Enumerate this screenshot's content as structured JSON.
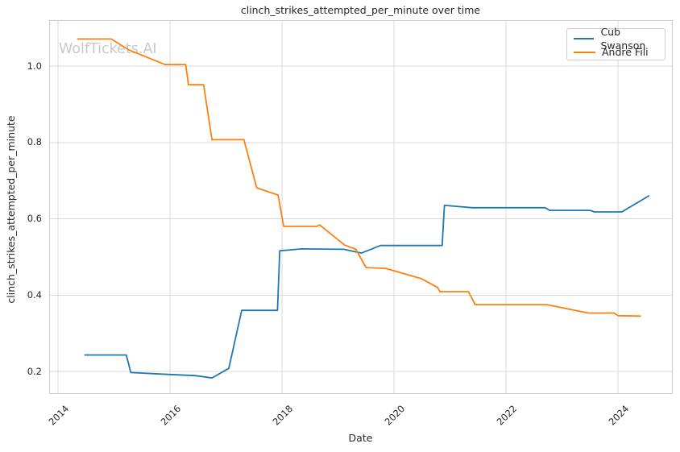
{
  "title": "clinch_strikes_attempted_per_minute over time",
  "watermark": "WolfTickets.AI",
  "axes": {
    "x_label": "Date",
    "y_label": "clinch_strikes_attempted_per_minute",
    "x_tick_labels": [
      "2014",
      "2016",
      "2018",
      "2020",
      "2022",
      "2024"
    ],
    "y_tick_labels": [
      "0.2",
      "0.4",
      "0.6",
      "0.8",
      "1.0"
    ]
  },
  "legend": {
    "position": "upper-right",
    "entries": [
      {
        "label": "Cub Swanson",
        "color": "#1f77b4"
      },
      {
        "label": "Andre Fili",
        "color": "#ff7f0e"
      }
    ]
  },
  "colors": {
    "grid": "#d9d9d9",
    "spine": "#cccccc",
    "text": "#262626",
    "watermark": "#c8c8c8",
    "background": "#ffffff"
  },
  "chart_data": {
    "type": "line",
    "title": "clinch_strikes_attempted_per_minute over time",
    "xlabel": "Date",
    "ylabel": "clinch_strikes_attempted_per_minute",
    "grid": true,
    "legend_position": "upper right",
    "x_axis": {
      "ticks": [
        2014,
        2016,
        2018,
        2020,
        2022,
        2024
      ],
      "range": [
        2013.83,
        2024.98
      ]
    },
    "y_axis": {
      "ticks": [
        0.2,
        0.4,
        0.6,
        0.8,
        1.0
      ],
      "range": [
        0.14,
        1.12
      ]
    },
    "series": [
      {
        "name": "Cub Swanson",
        "color": "#1f77b4",
        "points": [
          [
            2014.48,
            0.243
          ],
          [
            2015.22,
            0.243
          ],
          [
            2015.3,
            0.197
          ],
          [
            2016.0,
            0.192
          ],
          [
            2016.45,
            0.189
          ],
          [
            2016.75,
            0.183
          ],
          [
            2017.05,
            0.208
          ],
          [
            2017.28,
            0.36
          ],
          [
            2017.92,
            0.36
          ],
          [
            2017.96,
            0.516
          ],
          [
            2018.35,
            0.521
          ],
          [
            2019.1,
            0.52
          ],
          [
            2019.42,
            0.51
          ],
          [
            2019.76,
            0.53
          ],
          [
            2020.86,
            0.53
          ],
          [
            2020.9,
            0.635
          ],
          [
            2021.4,
            0.629
          ],
          [
            2022.7,
            0.629
          ],
          [
            2022.78,
            0.622
          ],
          [
            2023.5,
            0.622
          ],
          [
            2023.58,
            0.618
          ],
          [
            2024.07,
            0.618
          ],
          [
            2024.55,
            0.66
          ]
        ]
      },
      {
        "name": "Andre Fili",
        "color": "#ff7f0e",
        "points": [
          [
            2014.35,
            1.071
          ],
          [
            2014.95,
            1.071
          ],
          [
            2015.27,
            1.042
          ],
          [
            2015.91,
            1.004
          ],
          [
            2016.28,
            1.004
          ],
          [
            2016.33,
            0.951
          ],
          [
            2016.6,
            0.951
          ],
          [
            2016.75,
            0.807
          ],
          [
            2017.32,
            0.807
          ],
          [
            2017.55,
            0.681
          ],
          [
            2017.93,
            0.662
          ],
          [
            2018.03,
            0.58
          ],
          [
            2018.62,
            0.58
          ],
          [
            2018.67,
            0.584
          ],
          [
            2019.12,
            0.531
          ],
          [
            2019.32,
            0.52
          ],
          [
            2019.5,
            0.472
          ],
          [
            2019.85,
            0.47
          ],
          [
            2020.49,
            0.443
          ],
          [
            2020.78,
            0.42
          ],
          [
            2020.82,
            0.409
          ],
          [
            2021.33,
            0.409
          ],
          [
            2021.45,
            0.375
          ],
          [
            2022.73,
            0.375
          ],
          [
            2023.47,
            0.353
          ],
          [
            2023.93,
            0.353
          ],
          [
            2024.0,
            0.346
          ],
          [
            2024.4,
            0.345
          ]
        ]
      }
    ]
  }
}
